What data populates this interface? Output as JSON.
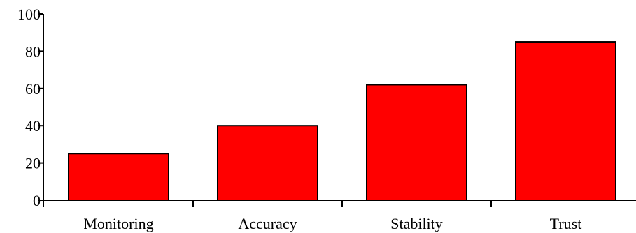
{
  "chart_data": {
    "type": "bar",
    "categories": [
      "Monitoring",
      "Accuracy",
      "Stability",
      "Trust"
    ],
    "values": [
      25,
      40,
      62,
      85
    ],
    "title": "",
    "xlabel": "",
    "ylabel": "",
    "ylim": [
      0,
      100
    ],
    "yticks": [
      0,
      20,
      40,
      60,
      80,
      100
    ],
    "grid": false,
    "bar_color": "#ff0000",
    "edge_color": "#000000"
  }
}
